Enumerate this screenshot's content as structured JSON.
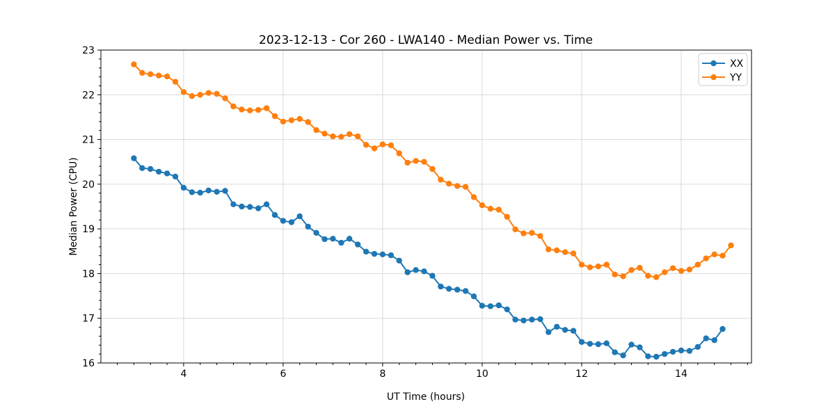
{
  "title": "2023-12-13 - Cor 260 - LWA140 - Median Power vs. Time",
  "legend": {
    "items": [
      "XX",
      "YY"
    ],
    "position": "upper right"
  },
  "colors": {
    "xx": "#1f77b4",
    "yy": "#ff7f0e",
    "grid": "#d9d9d9",
    "spine": "#000000",
    "legend_edge": "#cccccc",
    "background": "#ffffff"
  },
  "chart_data": {
    "type": "line",
    "title": "2023-12-13 - Cor 260 - LWA140 - Median Power vs. Time",
    "xlabel": "UT Time (hours)",
    "ylabel": "Median Power (CPU)",
    "xlim": [
      2.337,
      15.413
    ],
    "ylim": [
      16,
      23
    ],
    "xticks": [
      4,
      6,
      8,
      10,
      12,
      14
    ],
    "yticks": [
      16,
      17,
      18,
      19,
      20,
      21,
      22,
      23
    ],
    "x_minor_step": 0.3333333,
    "y_minor_step": 0.2,
    "grid": true,
    "legend_position": "upper right",
    "marker": "o",
    "series": [
      {
        "name": "XX",
        "color": "#1f77b4",
        "x": [
          3.0,
          3.167,
          3.333,
          3.5,
          3.667,
          3.833,
          4.0,
          4.167,
          4.333,
          4.5,
          4.667,
          4.833,
          5.0,
          5.167,
          5.333,
          5.5,
          5.667,
          5.833,
          6.0,
          6.167,
          6.333,
          6.5,
          6.667,
          6.833,
          7.0,
          7.167,
          7.333,
          7.5,
          7.667,
          7.833,
          8.0,
          8.167,
          8.333,
          8.5,
          8.667,
          8.833,
          9.0,
          9.167,
          9.333,
          9.5,
          9.667,
          9.833,
          10.0,
          10.167,
          10.333,
          10.5,
          10.667,
          10.833,
          11.0,
          11.167,
          11.333,
          11.5,
          11.667,
          11.833,
          12.0,
          12.167,
          12.333,
          12.5,
          12.667,
          12.833,
          13.0,
          13.167,
          13.333,
          13.5,
          13.667,
          13.833,
          14.0,
          14.167,
          14.333,
          14.5,
          14.667,
          14.833
        ],
        "values": [
          20.58,
          20.36,
          20.34,
          20.28,
          20.24,
          20.17,
          19.92,
          19.82,
          19.81,
          19.86,
          19.83,
          19.85,
          19.55,
          19.5,
          19.49,
          19.46,
          19.55,
          19.31,
          19.18,
          19.15,
          19.28,
          19.05,
          18.91,
          18.77,
          18.78,
          18.69,
          18.78,
          18.65,
          18.49,
          18.44,
          18.43,
          18.41,
          18.29,
          18.03,
          18.08,
          18.05,
          17.95,
          17.71,
          17.66,
          17.64,
          17.61,
          17.49,
          17.28,
          17.27,
          17.29,
          17.2,
          16.97,
          16.95,
          16.97,
          16.98,
          16.69,
          16.81,
          16.74,
          16.72,
          16.47,
          16.43,
          16.42,
          16.44,
          16.24,
          16.17,
          16.41,
          16.35,
          16.15,
          16.14,
          16.2,
          16.25,
          16.28,
          16.27,
          16.36,
          16.55,
          16.51,
          16.76
        ]
      },
      {
        "name": "YY",
        "color": "#ff7f0e",
        "x": [
          3.0,
          3.167,
          3.333,
          3.5,
          3.667,
          3.833,
          4.0,
          4.167,
          4.333,
          4.5,
          4.667,
          4.833,
          5.0,
          5.167,
          5.333,
          5.5,
          5.667,
          5.833,
          6.0,
          6.167,
          6.333,
          6.5,
          6.667,
          6.833,
          7.0,
          7.167,
          7.333,
          7.5,
          7.667,
          7.833,
          8.0,
          8.167,
          8.333,
          8.5,
          8.667,
          8.833,
          9.0,
          9.167,
          9.333,
          9.5,
          9.667,
          9.833,
          10.0,
          10.167,
          10.333,
          10.5,
          10.667,
          10.833,
          11.0,
          11.167,
          11.333,
          11.5,
          11.667,
          11.833,
          12.0,
          12.167,
          12.333,
          12.5,
          12.667,
          12.833,
          13.0,
          13.167,
          13.333,
          13.5,
          13.667,
          13.833,
          14.0,
          14.167,
          14.333,
          14.5,
          14.667,
          14.833,
          15.0
        ],
        "values": [
          22.68,
          22.49,
          22.46,
          22.43,
          22.41,
          22.29,
          22.06,
          21.97,
          22.0,
          22.04,
          22.02,
          21.92,
          21.74,
          21.67,
          21.65,
          21.66,
          21.7,
          21.52,
          21.4,
          21.43,
          21.46,
          21.39,
          21.21,
          21.13,
          21.07,
          21.06,
          21.12,
          21.07,
          20.88,
          20.8,
          20.89,
          20.87,
          20.69,
          20.48,
          20.52,
          20.5,
          20.34,
          20.1,
          20.01,
          19.96,
          19.94,
          19.71,
          19.53,
          19.45,
          19.43,
          19.27,
          18.99,
          18.9,
          18.91,
          18.84,
          18.54,
          18.52,
          18.48,
          18.45,
          18.2,
          18.14,
          18.16,
          18.2,
          17.98,
          17.94,
          18.08,
          18.13,
          17.95,
          17.92,
          18.03,
          18.12,
          18.06,
          18.09,
          18.2,
          18.34,
          18.43,
          18.4,
          18.63
        ]
      }
    ]
  }
}
